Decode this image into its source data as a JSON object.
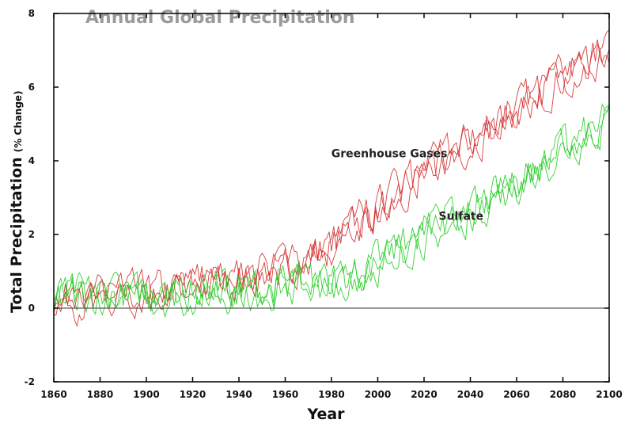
{
  "chart_data": {
    "type": "line",
    "title": "Annual Global Precipitation",
    "xlabel": "Year",
    "ylabel": "Total Precipitation",
    "ylabel_unit": "(% Change)",
    "xlim": [
      1860,
      2100
    ],
    "ylim": [
      -2,
      8
    ],
    "x_ticks": [
      1860,
      1880,
      1900,
      1920,
      1940,
      1960,
      1980,
      2000,
      2020,
      2040,
      2060,
      2080,
      2100
    ],
    "y_ticks": [
      -2,
      0,
      2,
      4,
      6,
      8
    ],
    "zero_line": true,
    "grid": false,
    "legend": "inline labels",
    "series": [
      {
        "name": "Greenhouse Gases",
        "color": "#d42a2a",
        "x": [
          1860,
          1880,
          1900,
          1920,
          1940,
          1960,
          1980,
          2000,
          2020,
          2040,
          2060,
          2080,
          2100
        ],
        "values": [
          0.2,
          0.3,
          0.4,
          0.6,
          0.8,
          1.1,
          1.7,
          2.7,
          3.7,
          4.5,
          5.4,
          6.3,
          7.0
        ]
      },
      {
        "name": "Sulfate",
        "color": "#22cc22",
        "x": [
          1860,
          1880,
          1900,
          1920,
          1940,
          1960,
          1980,
          2000,
          2020,
          2040,
          2060,
          2080,
          2100
        ],
        "values": [
          0.3,
          0.4,
          0.3,
          0.4,
          0.5,
          0.6,
          0.7,
          1.2,
          2.0,
          2.6,
          3.4,
          4.3,
          5.1
        ]
      }
    ],
    "annotations": [
      {
        "text": "Greenhouse Gases",
        "series": "Greenhouse Gases"
      },
      {
        "text": "Sulfate",
        "series": "Sulfate"
      }
    ]
  }
}
